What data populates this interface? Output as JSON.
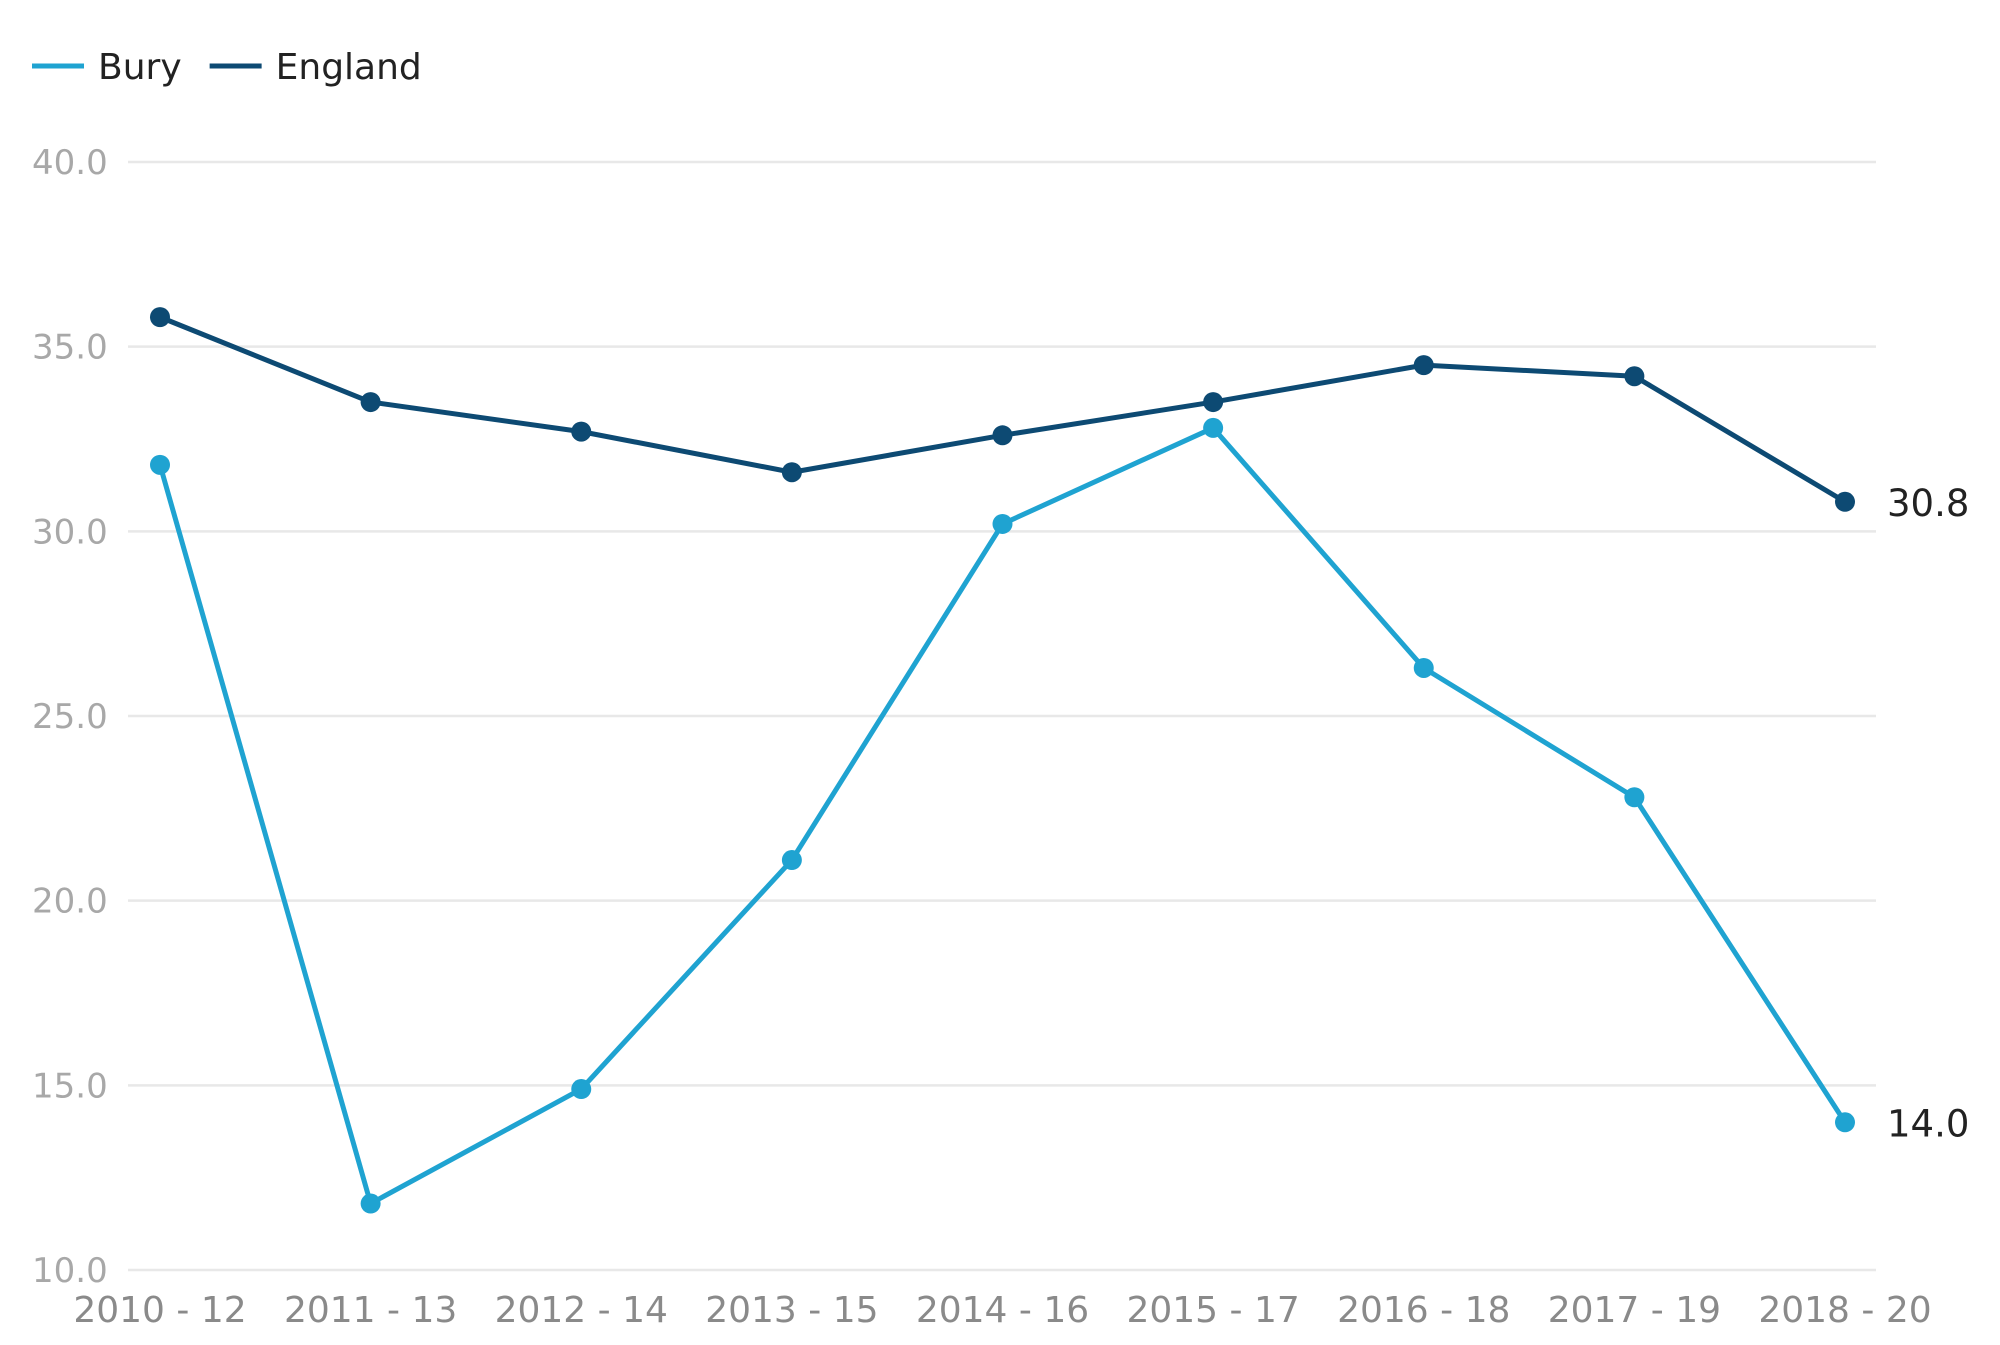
{
  "chart_data": {
    "type": "line",
    "title": "",
    "xlabel": "",
    "ylabel": "",
    "categories": [
      "2010 - 12",
      "2011 - 13",
      "2012 - 14",
      "2013 - 15",
      "2014 - 16",
      "2015 - 17",
      "2016 - 18",
      "2017 - 19",
      "2018 - 20"
    ],
    "y_ticks": [
      "10.0",
      "15.0",
      "20.0",
      "25.0",
      "30.0",
      "35.0",
      "40.0"
    ],
    "ylim": [
      10,
      40
    ],
    "grid": true,
    "legend_position": "top-left",
    "series": [
      {
        "name": "Bury",
        "color": "#1fa3d1",
        "values": [
          31.8,
          11.8,
          14.9,
          21.1,
          30.2,
          32.8,
          26.3,
          22.8,
          14.0
        ],
        "end_label": "14.0"
      },
      {
        "name": "England",
        "color": "#0d4a73",
        "values": [
          35.8,
          33.5,
          32.7,
          31.6,
          32.6,
          33.5,
          34.5,
          34.2,
          30.8
        ],
        "end_label": "30.8"
      }
    ]
  }
}
